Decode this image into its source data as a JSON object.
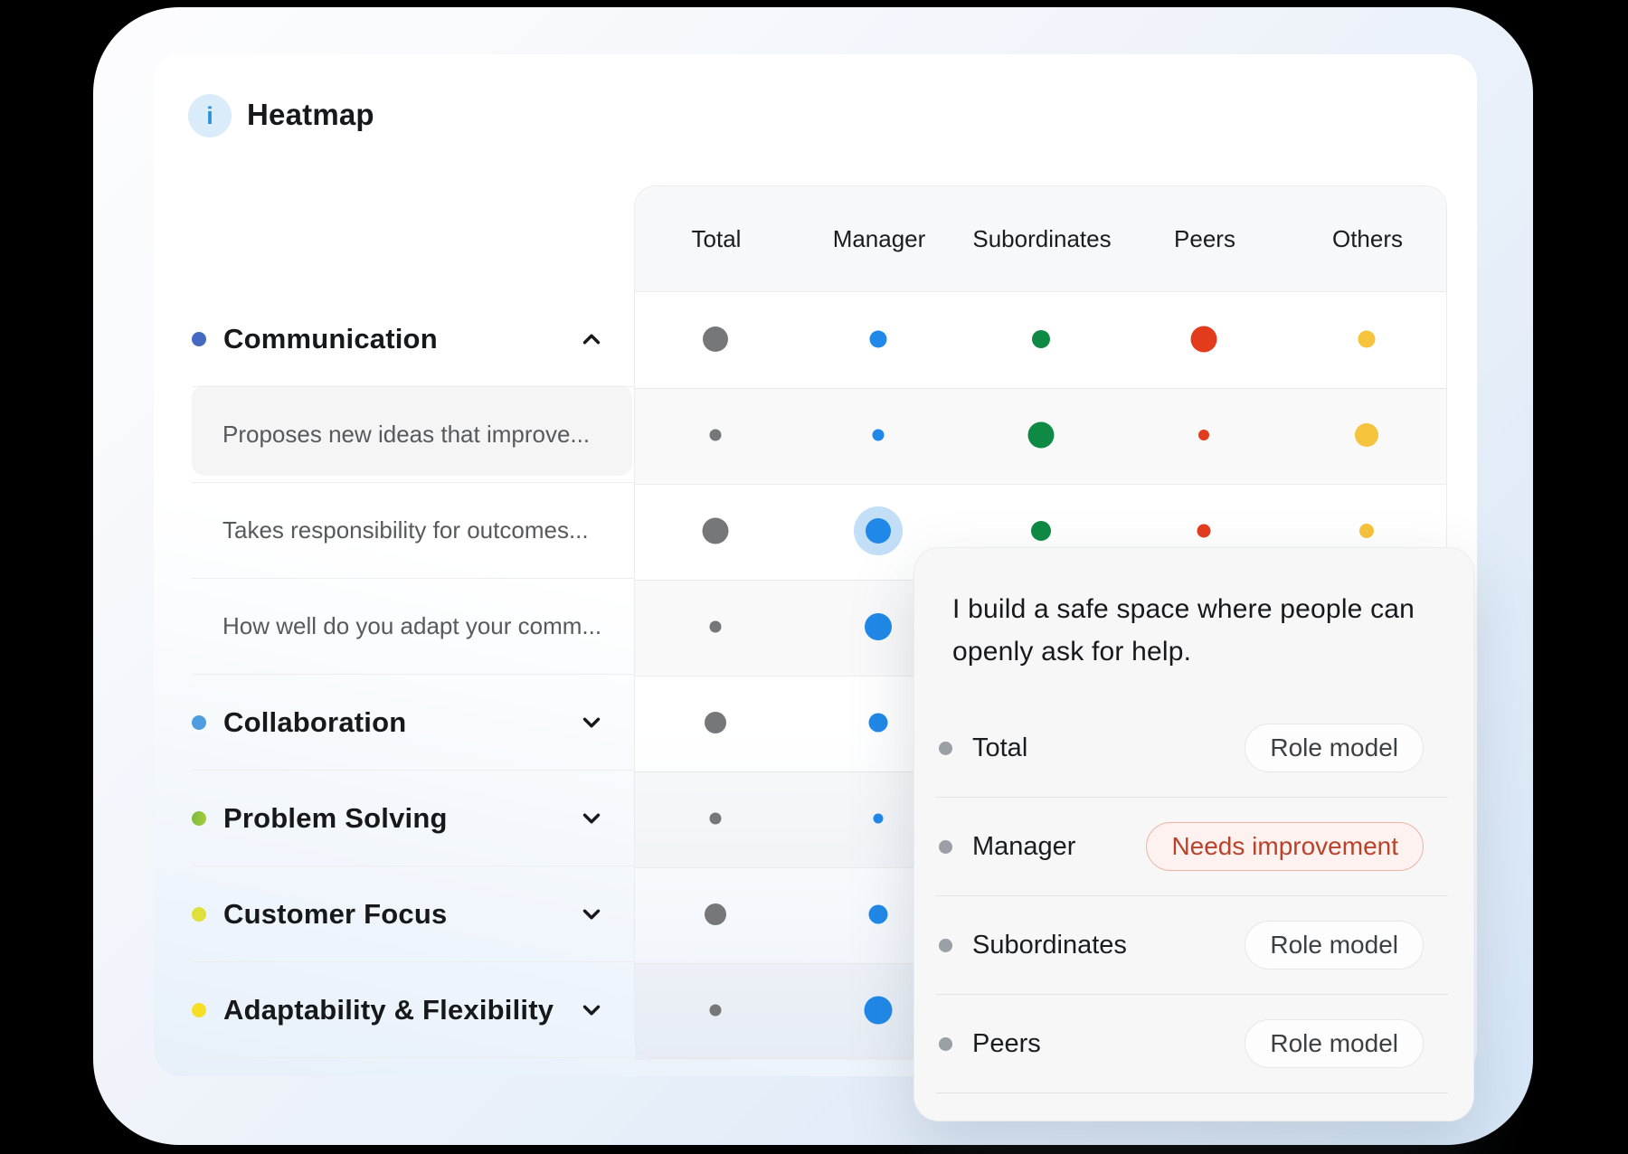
{
  "header": {
    "title": "Heatmap",
    "info_icon": "i"
  },
  "table": {
    "columns": [
      "Total",
      "Manager",
      "Subordinates",
      "Peers",
      "Others"
    ],
    "column_dot_colors": [
      "#757779",
      "#1f88e8",
      "#0e8a44",
      "#e23c1d",
      "#f5c33c"
    ],
    "halo_color": "#c3def7",
    "rows": [
      {
        "kind": "category",
        "label": "Communication",
        "bullet_color": "#4569c1",
        "state": "expanded",
        "dot_sizes": [
          28,
          19,
          20,
          29,
          19
        ],
        "halo_col": null
      },
      {
        "kind": "question",
        "label": "Proposes new ideas that improve...",
        "highlighted": true,
        "dot_sizes": [
          13,
          13,
          29,
          12,
          26
        ],
        "halo_col": null
      },
      {
        "kind": "question",
        "label": "Takes responsibility for outcomes...",
        "highlighted": false,
        "dot_sizes": [
          29,
          28,
          22,
          15,
          16
        ],
        "halo_col": 1
      },
      {
        "kind": "question",
        "label": "How well do you adapt your comm...",
        "highlighted": false,
        "dot_sizes": [
          13,
          30,
          null,
          null,
          null
        ],
        "halo_col": null
      },
      {
        "kind": "category",
        "label": "Collaboration",
        "bullet_color": "#4f9ce0",
        "state": "collapsed",
        "dot_sizes": [
          24,
          21,
          null,
          null,
          null
        ],
        "halo_col": null
      },
      {
        "kind": "category",
        "label": "Problem Solving",
        "bullet_color": "#79b93e",
        "bullet_color2": "#a6cd3b",
        "state": "collapsed",
        "dot_sizes": [
          13,
          11,
          null,
          null,
          null
        ],
        "halo_col": null
      },
      {
        "kind": "category",
        "label": "Customer Focus",
        "bullet_color": "#dde139",
        "state": "collapsed",
        "dot_sizes": [
          24,
          21,
          null,
          null,
          null
        ],
        "halo_col": null
      },
      {
        "kind": "category",
        "label": "Adaptability & Flexibility",
        "bullet_color": "#f6de26",
        "state": "collapsed",
        "dot_sizes": [
          13,
          31,
          null,
          null,
          null
        ],
        "halo_col": null
      }
    ]
  },
  "tooltip": {
    "quote": "I build a safe space where people can openly ask for help.",
    "rows": [
      {
        "label": "Total",
        "badge": "Role model",
        "status": "positive"
      },
      {
        "label": "Manager",
        "badge": "Needs improvement",
        "status": "negative"
      },
      {
        "label": "Subordinates",
        "badge": "Role model",
        "status": "positive"
      },
      {
        "label": "Peers",
        "badge": "Role model",
        "status": "positive"
      }
    ]
  }
}
